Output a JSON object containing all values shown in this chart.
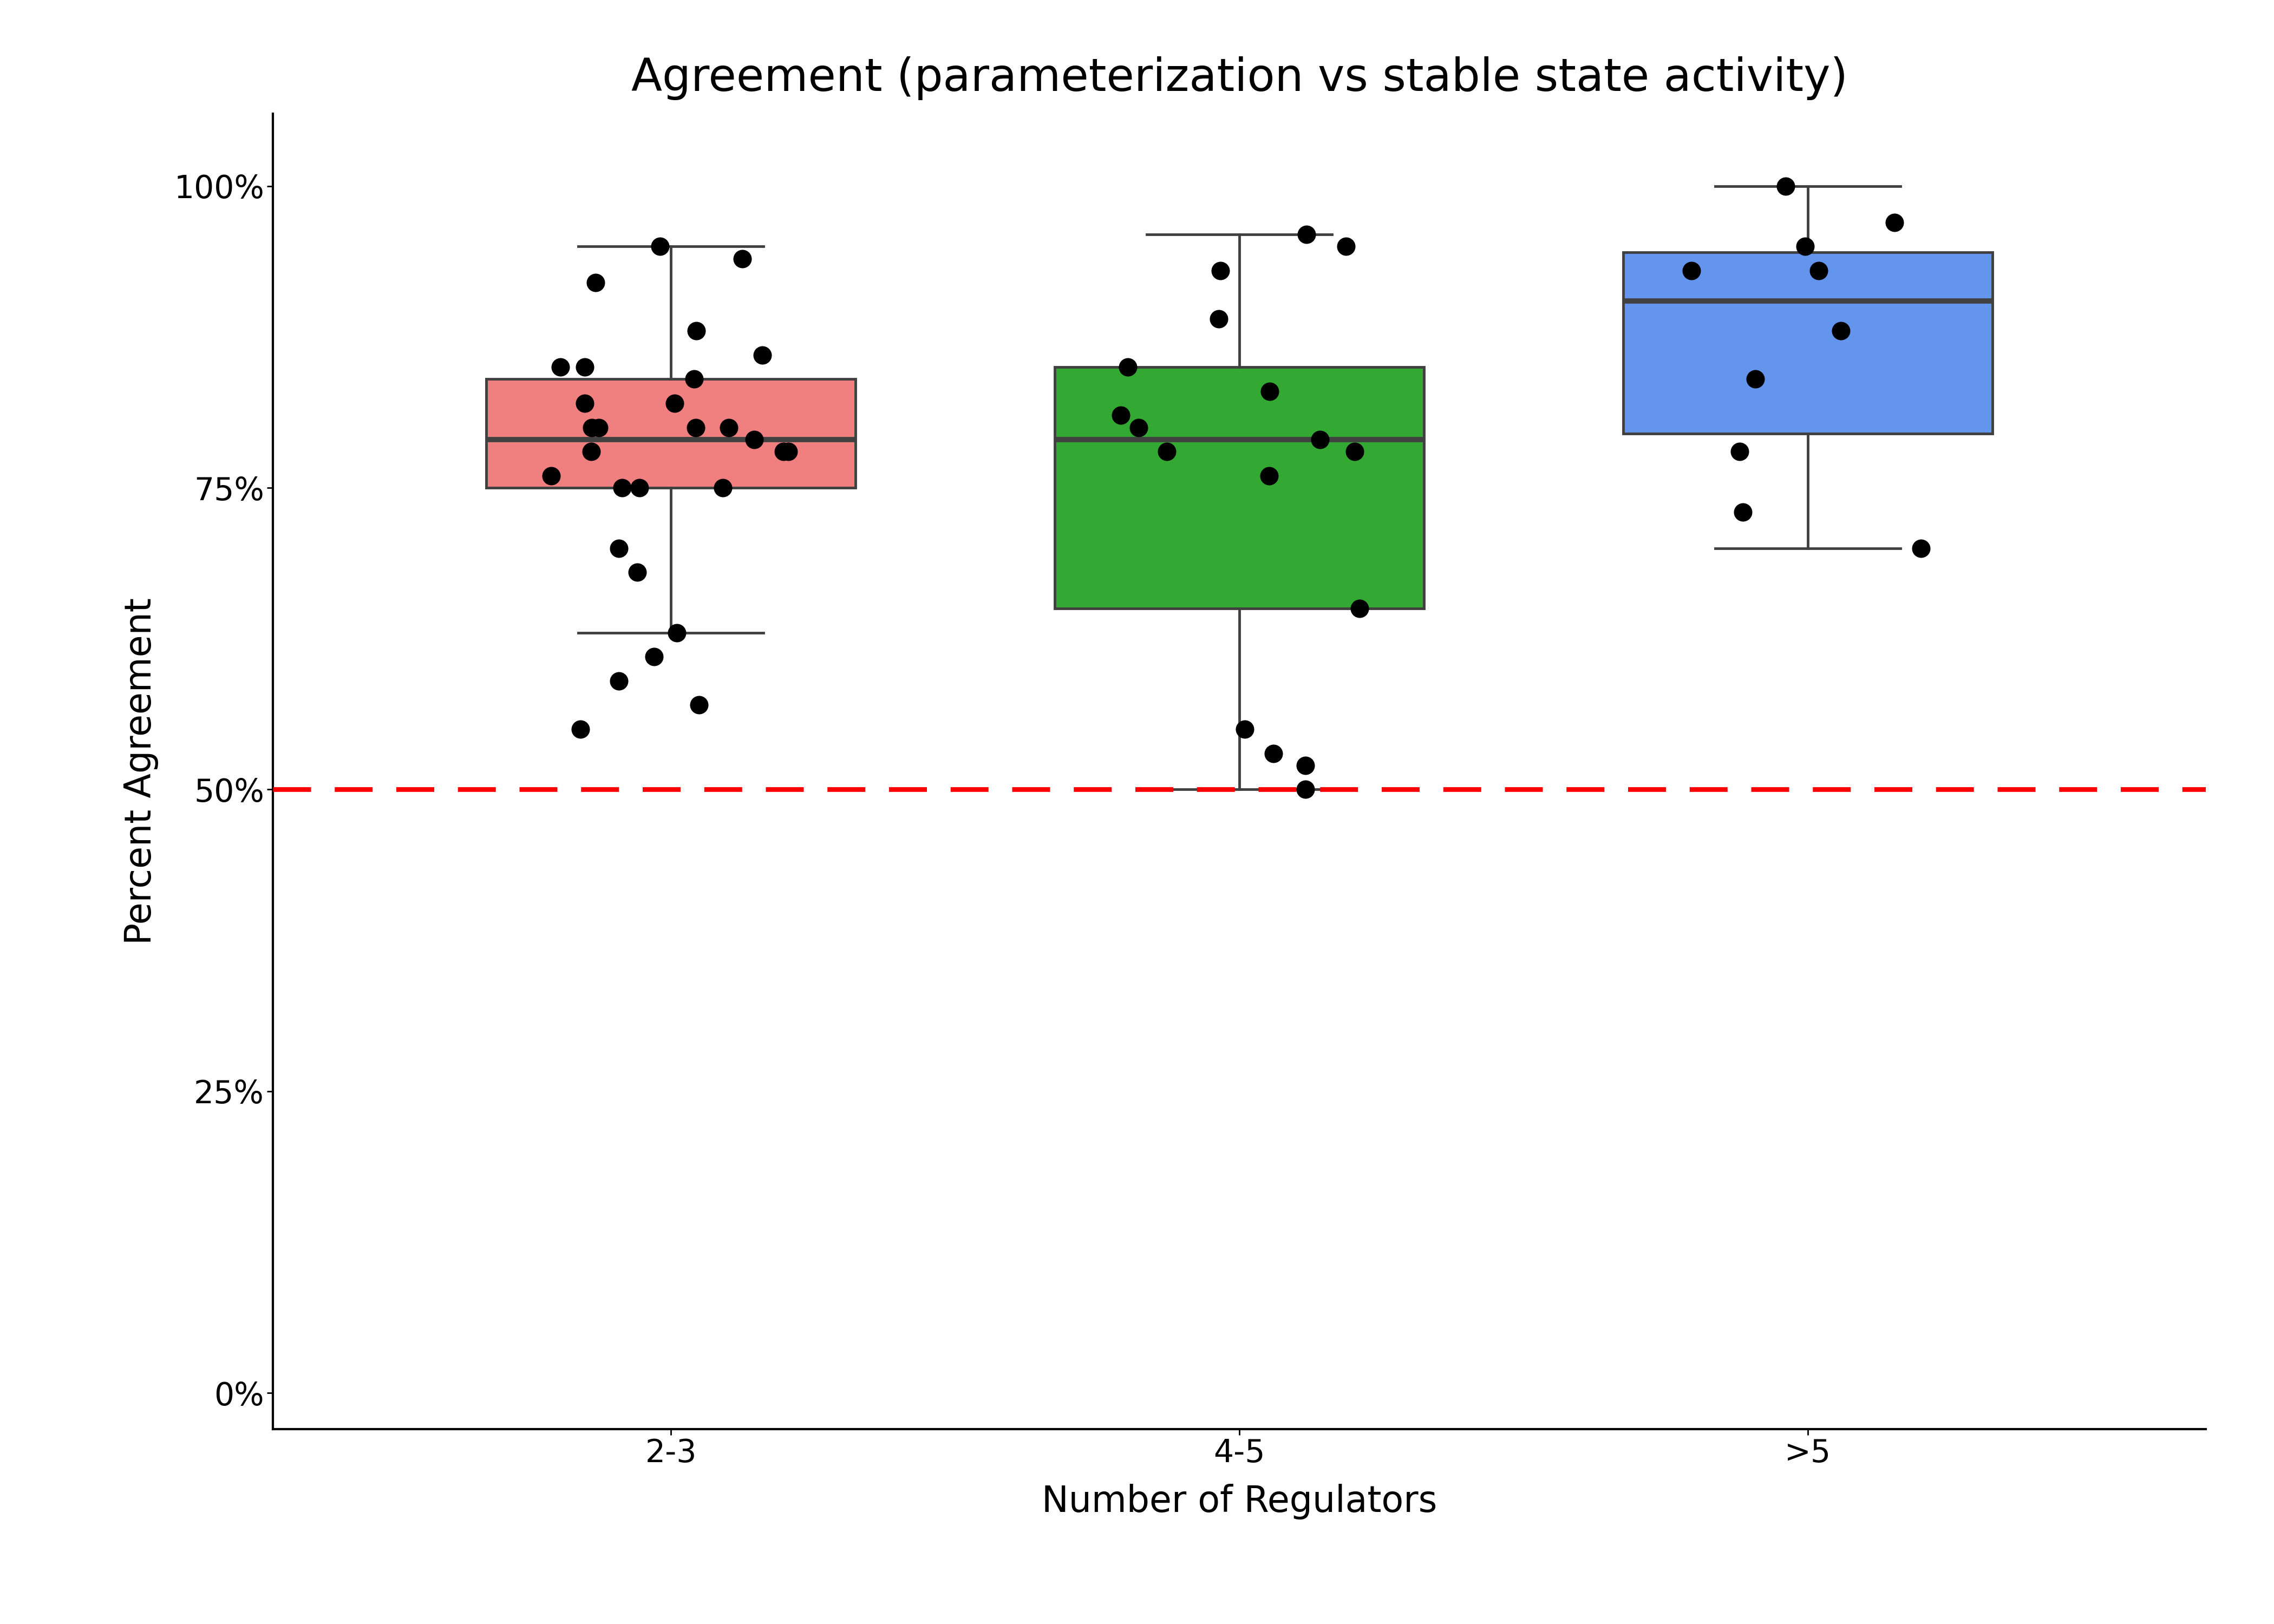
{
  "title": "Agreement (parameterization vs stable state activity)",
  "xlabel": "Number of Regulators",
  "ylabel": "Percent Agreement",
  "categories": [
    "2-3",
    "4-5",
    ">5"
  ],
  "box_colors": [
    "#F08080",
    "#33A833",
    "#6495ED"
  ],
  "box_edge_color": "#404040",
  "median_color": "#404040",
  "dashed_line_y": 0.5,
  "dashed_line_color": "#FF0000",
  "yticks": [
    0.0,
    0.25,
    0.5,
    0.75,
    1.0
  ],
  "ytick_labels": [
    "0%",
    "25%",
    "50%",
    "75%",
    "100%"
  ],
  "ylim": [
    -0.03,
    1.06
  ],
  "xlim": [
    0.3,
    3.7
  ],
  "group1_data": [
    0.75,
    0.78,
    0.8,
    0.8,
    0.82,
    0.85,
    0.85,
    0.86,
    0.88,
    0.75,
    0.76,
    0.78,
    0.79,
    0.8,
    0.78,
    0.8,
    0.75,
    0.63,
    0.61,
    0.59,
    0.57,
    0.55,
    0.7,
    0.68,
    0.95,
    0.94,
    0.92,
    0.82,
    0.84
  ],
  "group2_data": [
    0.79,
    0.81,
    0.78,
    0.76,
    0.8,
    0.83,
    0.85,
    0.78,
    0.65,
    0.55,
    0.53,
    0.52,
    0.5,
    0.89,
    0.96,
    0.93,
    0.95
  ],
  "group3_data": [
    0.93,
    0.95,
    0.97,
    1.0,
    0.88,
    0.84,
    0.93,
    0.78,
    0.73,
    0.7
  ],
  "point_color": "#000000",
  "point_size": 600,
  "title_fontsize": 60,
  "label_fontsize": 48,
  "tick_fontsize": 42,
  "box_width": 0.65,
  "linewidth": 3.5,
  "median_linewidth": 7,
  "background_color": "#FFFFFF",
  "whisker_cap_linewidth": 3.5
}
